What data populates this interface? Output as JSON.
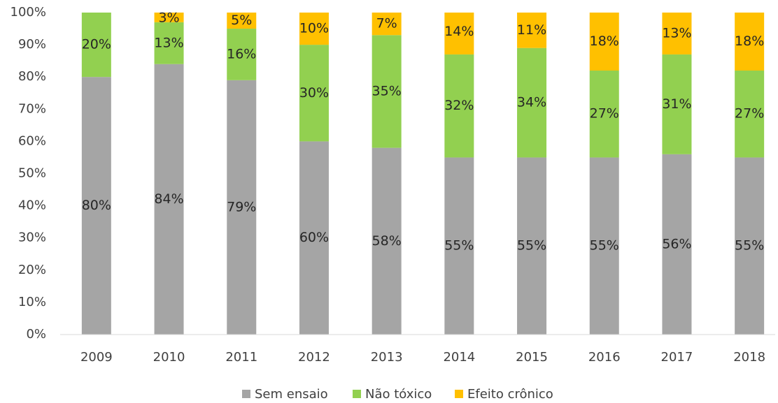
{
  "chart_data": {
    "type": "stacked_bar",
    "categories": [
      "2009",
      "2010",
      "2011",
      "2012",
      "2013",
      "2014",
      "2015",
      "2016",
      "2017",
      "2018"
    ],
    "series": [
      {
        "name": "Sem ensaio",
        "color": "#a5a5a5",
        "values": [
          80,
          84,
          79,
          60,
          58,
          55,
          55,
          55,
          56,
          55
        ],
        "value_labels": [
          "80%",
          "84%",
          "79%",
          "60%",
          "58%",
          "55%",
          "55%",
          "55%",
          "56%",
          "55%"
        ]
      },
      {
        "name": "Não tóxico",
        "color": "#92d050",
        "values": [
          20,
          13,
          16,
          30,
          35,
          32,
          34,
          27,
          31,
          27
        ],
        "value_labels": [
          "20%",
          "13%",
          "16%",
          "30%",
          "35%",
          "32%",
          "34%",
          "27%",
          "31%",
          "27%"
        ]
      },
      {
        "name": "Efeito crônico",
        "color": "#ffc000",
        "values": [
          null,
          3,
          5,
          10,
          7,
          14,
          11,
          18,
          13,
          18
        ],
        "value_labels": [
          null,
          "3%",
          "5%",
          "10%",
          "7%",
          "14%",
          "11%",
          "18%",
          "13%",
          "18%"
        ]
      }
    ],
    "ylim": [
      0,
      100
    ],
    "yticks": [
      {
        "value": 0,
        "label": "0%"
      },
      {
        "value": 10,
        "label": "10%"
      },
      {
        "value": 20,
        "label": "20%"
      },
      {
        "value": 30,
        "label": "30%"
      },
      {
        "value": 40,
        "label": "40%"
      },
      {
        "value": 50,
        "label": "50%"
      },
      {
        "value": 60,
        "label": "60%"
      },
      {
        "value": 70,
        "label": "70%"
      },
      {
        "value": 80,
        "label": "80%"
      },
      {
        "value": 90,
        "label": "90%"
      },
      {
        "value": 100,
        "label": "100%"
      }
    ],
    "grid": false,
    "legend": "bottom"
  }
}
